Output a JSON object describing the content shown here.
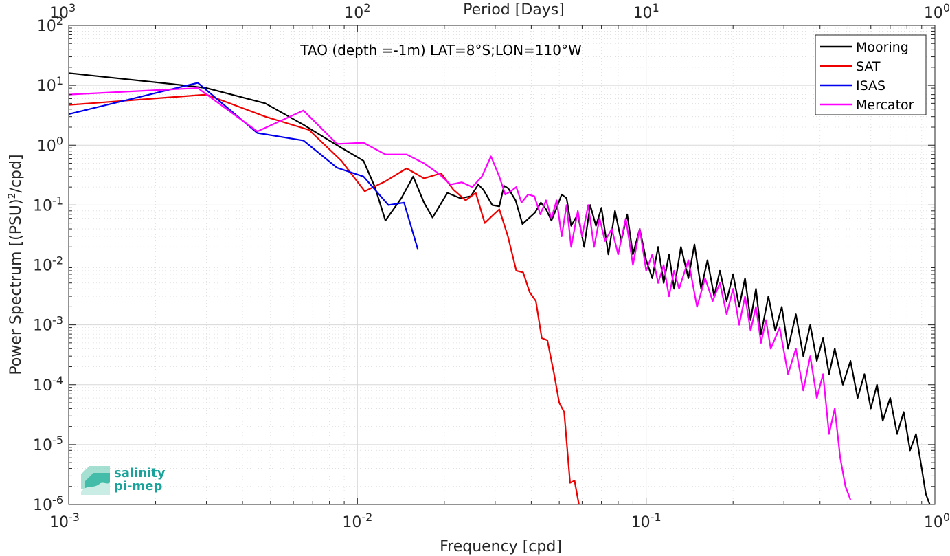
{
  "chart_data": {
    "type": "line",
    "title": "TAO (depth =-1m) LAT=8°S;LON=110°W",
    "xlabel": "Frequency [cpd]",
    "ylabel": "Power Spectrum [(PSU)²/cpd]",
    "x2label": "Period [Days]",
    "xscale": "log",
    "yscale": "log",
    "xlim": [
      0.001,
      1
    ],
    "ylim": [
      1e-06,
      100
    ],
    "grid": true,
    "legend_position": "top-right",
    "x_ticks": [
      {
        "base": "10",
        "exp": "-3",
        "value": 0.001
      },
      {
        "base": "10",
        "exp": "-2",
        "value": 0.01
      },
      {
        "base": "10",
        "exp": "-1",
        "value": 0.1
      },
      {
        "base": "10",
        "exp": "0",
        "value": 1
      }
    ],
    "x2_ticks": [
      {
        "base": "10",
        "exp": "3",
        "value": 0.001
      },
      {
        "base": "10",
        "exp": "2",
        "value": 0.01
      },
      {
        "base": "10",
        "exp": "1",
        "value": 0.1
      },
      {
        "base": "10",
        "exp": "0",
        "value": 1
      }
    ],
    "y_ticks": [
      {
        "base": "10",
        "exp": "2",
        "value": 100
      },
      {
        "base": "10",
        "exp": "1",
        "value": 10
      },
      {
        "base": "10",
        "exp": "0",
        "value": 1
      },
      {
        "base": "10",
        "exp": "-1",
        "value": 0.1
      },
      {
        "base": "10",
        "exp": "-2",
        "value": 0.01
      },
      {
        "base": "10",
        "exp": "-3",
        "value": 0.001
      },
      {
        "base": "10",
        "exp": "-4",
        "value": 0.0001
      },
      {
        "base": "10",
        "exp": "-5",
        "value": 1e-05
      },
      {
        "base": "10",
        "exp": "-6",
        "value": 1e-06
      }
    ],
    "series": [
      {
        "name": "Mooring",
        "color": "#000000",
        "points": [
          [
            0.001,
            16
          ],
          [
            0.0025,
            10
          ],
          [
            0.003,
            9
          ],
          [
            0.0048,
            5
          ],
          [
            0.0065,
            2.2
          ],
          [
            0.0085,
            1.0
          ],
          [
            0.0105,
            0.55
          ],
          [
            0.0115,
            0.2
          ],
          [
            0.0125,
            0.055
          ],
          [
            0.0142,
            0.13
          ],
          [
            0.0156,
            0.3
          ],
          [
            0.017,
            0.11
          ],
          [
            0.0182,
            0.062
          ],
          [
            0.0205,
            0.16
          ],
          [
            0.0227,
            0.13
          ],
          [
            0.0247,
            0.14
          ],
          [
            0.0262,
            0.22
          ],
          [
            0.0273,
            0.18
          ],
          [
            0.0293,
            0.1
          ],
          [
            0.031,
            0.095
          ],
          [
            0.0322,
            0.21
          ],
          [
            0.0333,
            0.19
          ],
          [
            0.0353,
            0.12
          ],
          [
            0.0373,
            0.048
          ],
          [
            0.0392,
            0.06
          ],
          [
            0.0412,
            0.075
          ],
          [
            0.0432,
            0.11
          ],
          [
            0.045,
            0.085
          ],
          [
            0.047,
            0.055
          ],
          [
            0.049,
            0.09
          ],
          [
            0.051,
            0.15
          ],
          [
            0.053,
            0.13
          ],
          [
            0.055,
            0.045
          ],
          [
            0.058,
            0.07
          ],
          [
            0.061,
            0.02
          ],
          [
            0.064,
            0.1
          ],
          [
            0.067,
            0.045
          ],
          [
            0.07,
            0.09
          ],
          [
            0.074,
            0.015
          ],
          [
            0.078,
            0.08
          ],
          [
            0.082,
            0.025
          ],
          [
            0.086,
            0.07
          ],
          [
            0.09,
            0.015
          ],
          [
            0.095,
            0.04
          ],
          [
            0.1,
            0.012
          ],
          [
            0.105,
            0.006
          ],
          [
            0.11,
            0.02
          ],
          [
            0.115,
            0.005
          ],
          [
            0.12,
            0.015
          ],
          [
            0.125,
            0.004
          ],
          [
            0.132,
            0.02
          ],
          [
            0.14,
            0.006
          ],
          [
            0.147,
            0.022
          ],
          [
            0.155,
            0.004
          ],
          [
            0.163,
            0.012
          ],
          [
            0.172,
            0.003
          ],
          [
            0.18,
            0.008
          ],
          [
            0.19,
            0.0025
          ],
          [
            0.2,
            0.007
          ],
          [
            0.21,
            0.002
          ],
          [
            0.22,
            0.006
          ],
          [
            0.23,
            0.0012
          ],
          [
            0.24,
            0.004
          ],
          [
            0.25,
            0.0007
          ],
          [
            0.265,
            0.003
          ],
          [
            0.28,
            0.0008
          ],
          [
            0.295,
            0.002
          ],
          [
            0.31,
            0.0004
          ],
          [
            0.33,
            0.0015
          ],
          [
            0.35,
            0.0003
          ],
          [
            0.37,
            0.001
          ],
          [
            0.39,
            0.00025
          ],
          [
            0.41,
            0.0006
          ],
          [
            0.43,
            0.00015
          ],
          [
            0.45,
            0.0004
          ],
          [
            0.48,
            0.0001
          ],
          [
            0.51,
            0.00025
          ],
          [
            0.54,
            6e-05
          ],
          [
            0.57,
            0.00015
          ],
          [
            0.6,
            4e-05
          ],
          [
            0.63,
            0.0001
          ],
          [
            0.66,
            2.5e-05
          ],
          [
            0.7,
            6e-05
          ],
          [
            0.74,
            1.5e-05
          ],
          [
            0.78,
            3.5e-05
          ],
          [
            0.82,
            8e-06
          ],
          [
            0.86,
            1.5e-05
          ],
          [
            0.9,
            4e-06
          ],
          [
            0.93,
            1.5e-06
          ],
          [
            0.96,
            1e-06
          ]
        ]
      },
      {
        "name": "SAT",
        "color": "#ee0000",
        "points": [
          [
            0.001,
            4.7
          ],
          [
            0.003,
            7.0
          ],
          [
            0.0048,
            3.0
          ],
          [
            0.0068,
            1.8
          ],
          [
            0.0088,
            0.55
          ],
          [
            0.0106,
            0.17
          ],
          [
            0.0125,
            0.25
          ],
          [
            0.0148,
            0.41
          ],
          [
            0.017,
            0.28
          ],
          [
            0.0195,
            0.34
          ],
          [
            0.0215,
            0.18
          ],
          [
            0.0237,
            0.12
          ],
          [
            0.0257,
            0.16
          ],
          [
            0.0276,
            0.05
          ],
          [
            0.0292,
            0.065
          ],
          [
            0.031,
            0.085
          ],
          [
            0.0332,
            0.03
          ],
          [
            0.0355,
            0.008
          ],
          [
            0.0375,
            0.0075
          ],
          [
            0.0395,
            0.0035
          ],
          [
            0.0415,
            0.0025
          ],
          [
            0.0435,
            0.0006
          ],
          [
            0.0455,
            0.00055
          ],
          [
            0.048,
            0.00015
          ],
          [
            0.05,
            5e-05
          ],
          [
            0.052,
            3.5e-05
          ],
          [
            0.0545,
            2.3e-06
          ],
          [
            0.0565,
            2.5e-06
          ],
          [
            0.0585,
            1e-06
          ]
        ]
      },
      {
        "name": "ISAS",
        "color": "#0000ee",
        "points": [
          [
            0.001,
            3.3
          ],
          [
            0.0028,
            11.0
          ],
          [
            0.0045,
            1.6
          ],
          [
            0.0065,
            1.2
          ],
          [
            0.0085,
            0.42
          ],
          [
            0.0105,
            0.3
          ],
          [
            0.0128,
            0.1
          ],
          [
            0.0145,
            0.11
          ],
          [
            0.0162,
            0.018
          ]
        ]
      },
      {
        "name": "Mercator",
        "color": "#ff00ff",
        "points": [
          [
            0.001,
            7.0
          ],
          [
            0.0028,
            9.0
          ],
          [
            0.0045,
            1.7
          ],
          [
            0.0065,
            3.8
          ],
          [
            0.0085,
            1.05
          ],
          [
            0.0105,
            1.1
          ],
          [
            0.0125,
            0.7
          ],
          [
            0.0148,
            0.7
          ],
          [
            0.017,
            0.5
          ],
          [
            0.0192,
            0.33
          ],
          [
            0.021,
            0.22
          ],
          [
            0.023,
            0.24
          ],
          [
            0.025,
            0.2
          ],
          [
            0.027,
            0.3
          ],
          [
            0.029,
            0.65
          ],
          [
            0.031,
            0.3
          ],
          [
            0.0325,
            0.15
          ],
          [
            0.034,
            0.17
          ],
          [
            0.0355,
            0.2
          ],
          [
            0.037,
            0.11
          ],
          [
            0.039,
            0.15
          ],
          [
            0.041,
            0.14
          ],
          [
            0.043,
            0.07
          ],
          [
            0.045,
            0.12
          ],
          [
            0.047,
            0.06
          ],
          [
            0.049,
            0.12
          ],
          [
            0.051,
            0.03
          ],
          [
            0.053,
            0.1
          ],
          [
            0.055,
            0.02
          ],
          [
            0.058,
            0.08
          ],
          [
            0.06,
            0.03
          ],
          [
            0.063,
            0.1
          ],
          [
            0.066,
            0.02
          ],
          [
            0.069,
            0.06
          ],
          [
            0.072,
            0.025
          ],
          [
            0.076,
            0.04
          ],
          [
            0.08,
            0.015
          ],
          [
            0.085,
            0.06
          ],
          [
            0.09,
            0.01
          ],
          [
            0.095,
            0.04
          ],
          [
            0.1,
            0.008
          ],
          [
            0.105,
            0.015
          ],
          [
            0.11,
            0.005
          ],
          [
            0.115,
            0.01
          ],
          [
            0.12,
            0.003
          ],
          [
            0.125,
            0.008
          ],
          [
            0.13,
            0.004
          ],
          [
            0.14,
            0.012
          ],
          [
            0.15,
            0.002
          ],
          [
            0.16,
            0.006
          ],
          [
            0.17,
            0.0025
          ],
          [
            0.18,
            0.005
          ],
          [
            0.19,
            0.0015
          ],
          [
            0.2,
            0.004
          ],
          [
            0.21,
            0.001
          ],
          [
            0.22,
            0.003
          ],
          [
            0.23,
            0.0008
          ],
          [
            0.24,
            0.002
          ],
          [
            0.25,
            0.0005
          ],
          [
            0.26,
            0.0012
          ],
          [
            0.27,
            0.0004
          ],
          [
            0.29,
            0.0009
          ],
          [
            0.31,
            0.00015
          ],
          [
            0.33,
            0.0004
          ],
          [
            0.35,
            8e-05
          ],
          [
            0.37,
            0.0003
          ],
          [
            0.39,
            6e-05
          ],
          [
            0.41,
            0.00015
          ],
          [
            0.43,
            1.5e-05
          ],
          [
            0.45,
            4e-05
          ],
          [
            0.47,
            6e-06
          ],
          [
            0.49,
            2e-06
          ],
          [
            0.51,
            1.2e-06
          ]
        ]
      }
    ]
  },
  "logo": {
    "line1": "salinity",
    "line2": "pi-mep"
  }
}
